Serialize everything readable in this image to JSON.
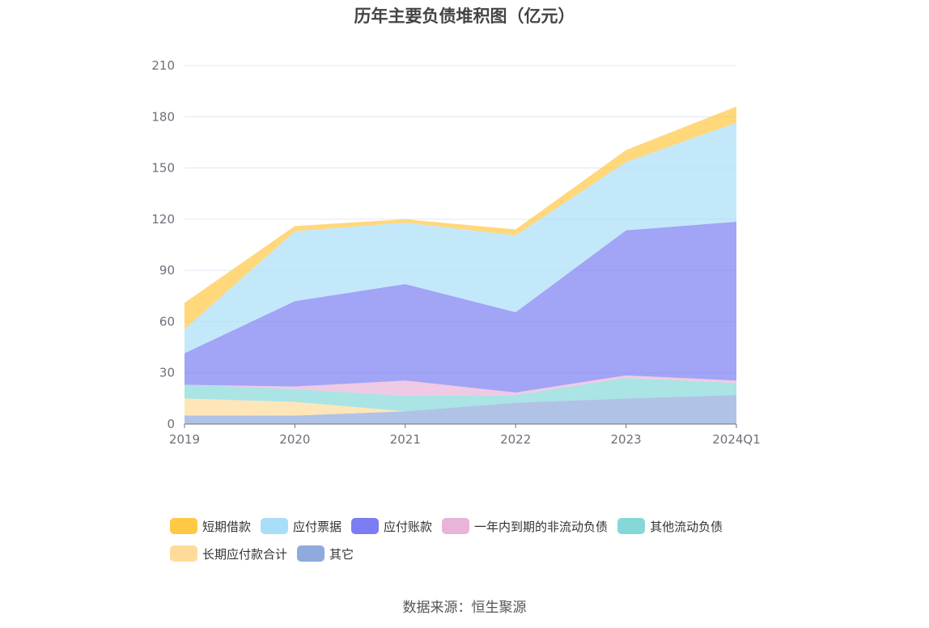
{
  "source_label": "数据来源：恒生聚源",
  "chart_data": {
    "type": "area",
    "stacked": true,
    "title": "历年主要负债堆积图（亿元）",
    "xlabel": "",
    "ylabel": "",
    "ylim": [
      0,
      210
    ],
    "yticks": [
      0,
      30,
      60,
      90,
      120,
      150,
      180,
      210
    ],
    "grid": true,
    "legend_position": "bottom",
    "categories": [
      "2019",
      "2020",
      "2021",
      "2022",
      "2023",
      "2024Q1"
    ],
    "series": [
      {
        "name": "其它",
        "color": "#8FAADC",
        "values": [
          5,
          5,
          7.5,
          12.5,
          15,
          17
        ]
      },
      {
        "name": "长期应付款合计",
        "color": "#FFDB9A",
        "values": [
          10,
          8,
          0,
          0,
          0,
          0
        ]
      },
      {
        "name": "其他流动负债",
        "color": "#86D8D8",
        "values": [
          8,
          7.5,
          9,
          4.5,
          12,
          7
        ]
      },
      {
        "name": "一年内到期的非流动负债",
        "color": "#E8B4D8",
        "values": [
          0,
          1.5,
          9,
          1.5,
          1.5,
          1.5
        ]
      },
      {
        "name": "应付账款",
        "color": "#7B7DF2",
        "values": [
          18.5,
          50,
          56.5,
          47,
          85,
          93
        ]
      },
      {
        "name": "应付票据",
        "color": "#A9DEF8",
        "values": [
          14,
          41,
          36,
          45,
          40,
          58
        ]
      },
      {
        "name": "短期借款",
        "color": "#FFC845",
        "values": [
          15.5,
          3,
          2,
          3.5,
          7,
          9.5
        ]
      }
    ],
    "legend_order": [
      "短期借款",
      "应付票据",
      "应付账款",
      "一年内到期的非流动负债",
      "其他流动负债",
      "长期应付款合计",
      "其它"
    ]
  }
}
